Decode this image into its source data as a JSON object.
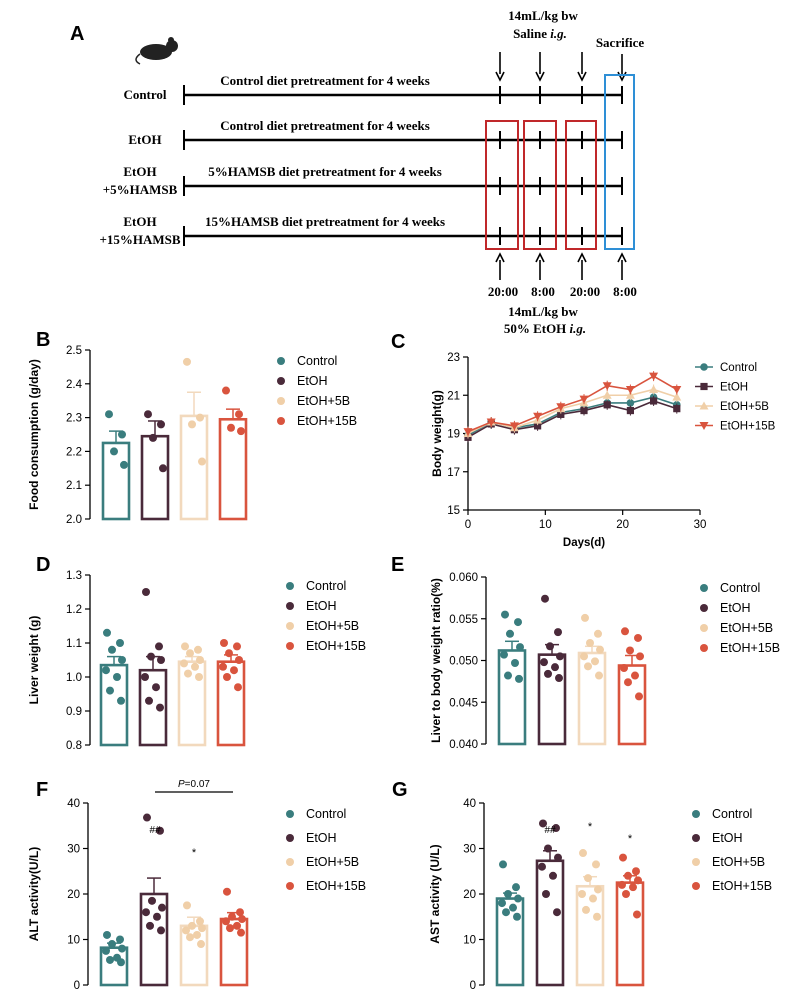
{
  "colors": {
    "control": "#3a7d7e",
    "etoh": "#4a2a3a",
    "b5": "#f2d9bd",
    "b15": "#d9543e",
    "red_box": "#c0282a",
    "blue_box": "#2e8fd6"
  },
  "icons": {
    "mouse": "mouse-icon"
  },
  "panel_a": {
    "letter": "A",
    "top_dose_l1": "14mL/kg bw",
    "top_dose_l2a": "Saline ",
    "top_dose_l2b": "i.g.",
    "sacrifice": "Sacrifice",
    "groups": [
      {
        "name_l1": "Control",
        "name_l2": "",
        "desc": "Control diet pretreatment for 4 weeks"
      },
      {
        "name_l1": "EtOH",
        "name_l2": "",
        "desc": "Control diet pretreatment for 4 weeks"
      },
      {
        "name_l1": "EtOH",
        "name_l2": "+5%HAMSB",
        "desc": "5%HAMSB diet pretreatment for 4 weeks"
      },
      {
        "name_l1": "EtOH",
        "name_l2": "+15%HAMSB",
        "desc": "15%HAMSB diet pretreatment for 4 weeks"
      }
    ],
    "times": [
      "20:00",
      "8:00",
      "20:00",
      "8:00"
    ],
    "bottom_dose_l1": "14mL/kg bw",
    "bottom_dose_l2a": "50% EtOH ",
    "bottom_dose_l2b": "i.g."
  },
  "chart_data": [
    {
      "panel": "B",
      "type": "bar",
      "ylabel": "Food consumption (g/day)",
      "ylim": [
        2.0,
        2.5
      ],
      "yticks": [
        "2.0",
        "2.1",
        "2.2",
        "2.3",
        "2.4",
        "2.5"
      ],
      "categories": [
        "Control",
        "EtOH",
        "EtOH+5B",
        "EtOH+15B"
      ],
      "values": [
        2.225,
        2.245,
        2.305,
        2.295
      ],
      "errors": [
        0.035,
        0.045,
        0.07,
        0.03
      ],
      "points": [
        [
          2.31,
          2.25,
          2.2,
          2.16
        ],
        [
          2.31,
          2.28,
          2.24,
          2.15
        ],
        [
          2.465,
          2.3,
          2.28,
          2.17
        ],
        [
          2.38,
          2.31,
          2.27,
          2.26
        ]
      ],
      "legend": [
        "Control",
        "EtOH",
        "EtOH+5B",
        "EtOH+15B"
      ],
      "legend_position": "right"
    },
    {
      "panel": "C",
      "type": "line",
      "xlabel": "Days(d)",
      "ylabel": "Body weight(g)",
      "xlim": [
        0,
        30
      ],
      "ylim": [
        15,
        23
      ],
      "xticks": [
        "0",
        "10",
        "20",
        "30"
      ],
      "yticks": [
        "15",
        "17",
        "19",
        "21",
        "23"
      ],
      "x": [
        0,
        3,
        6,
        9,
        12,
        15,
        18,
        21,
        24,
        27
      ],
      "series": [
        {
          "name": "Control",
          "values": [
            18.9,
            19.6,
            19.3,
            19.5,
            20.1,
            20.3,
            20.6,
            20.6,
            20.9,
            20.5
          ],
          "marker": "circle"
        },
        {
          "name": "EtOH",
          "values": [
            18.8,
            19.5,
            19.2,
            19.4,
            20.0,
            20.2,
            20.5,
            20.2,
            20.7,
            20.3
          ],
          "marker": "square"
        },
        {
          "name": "EtOH+5B",
          "values": [
            19.0,
            19.6,
            19.3,
            19.7,
            20.3,
            20.6,
            21.0,
            21.0,
            21.3,
            20.9
          ],
          "marker": "triangle-up"
        },
        {
          "name": "EtOH+15B",
          "values": [
            19.1,
            19.6,
            19.4,
            19.9,
            20.4,
            20.8,
            21.5,
            21.3,
            22.0,
            21.3
          ],
          "marker": "triangle-down"
        }
      ],
      "legend_position": "top-right"
    },
    {
      "panel": "D",
      "type": "bar",
      "ylabel": "Liver weight (g)",
      "ylim": [
        0.8,
        1.3
      ],
      "yticks": [
        "0.8",
        "0.9",
        "1.0",
        "1.1",
        "1.2",
        "1.3"
      ],
      "categories": [
        "Control",
        "EtOH",
        "EtOH+5B",
        "EtOH+15B"
      ],
      "values": [
        1.035,
        1.02,
        1.045,
        1.045
      ],
      "errors": [
        0.025,
        0.04,
        0.015,
        0.02
      ],
      "points": [
        [
          1.13,
          1.1,
          1.08,
          1.05,
          1.02,
          1.0,
          0.96,
          0.93
        ],
        [
          1.25,
          1.09,
          1.06,
          1.05,
          1.0,
          0.97,
          0.93,
          0.91
        ],
        [
          1.09,
          1.08,
          1.07,
          1.05,
          1.04,
          1.03,
          1.01,
          1.0
        ],
        [
          1.1,
          1.09,
          1.07,
          1.05,
          1.03,
          1.02,
          1.0,
          0.97
        ]
      ],
      "legend": [
        "Control",
        "EtOH",
        "EtOH+5B",
        "EtOH+15B"
      ],
      "legend_position": "right"
    },
    {
      "panel": "E",
      "type": "bar",
      "ylabel": "Liver to body weight ratio(%)",
      "ylim": [
        0.04,
        0.06
      ],
      "yticks": [
        "0.040",
        "0.045",
        "0.050",
        "0.055",
        "0.060"
      ],
      "categories": [
        "Control",
        "EtOH",
        "EtOH+5B",
        "EtOH+15B"
      ],
      "values": [
        0.0512,
        0.0507,
        0.0509,
        0.0494
      ],
      "errors": [
        0.0011,
        0.0012,
        0.0008,
        0.0012
      ],
      "points": [
        [
          0.0555,
          0.0546,
          0.0532,
          0.0516,
          0.0507,
          0.0497,
          0.0482,
          0.0478
        ],
        [
          0.0574,
          0.0534,
          0.0517,
          0.0505,
          0.0498,
          0.0492,
          0.0484,
          0.0479
        ],
        [
          0.0551,
          0.0532,
          0.0521,
          0.0513,
          0.0505,
          0.0499,
          0.0493,
          0.0482
        ],
        [
          0.0535,
          0.0527,
          0.0512,
          0.0505,
          0.0491,
          0.0482,
          0.0474,
          0.0457
        ]
      ],
      "legend": [
        "Control",
        "EtOH",
        "EtOH+5B",
        "EtOH+15B"
      ],
      "legend_position": "right"
    },
    {
      "panel": "F",
      "type": "bar",
      "ylabel": "ALT activity(U/L)",
      "ylim": [
        0,
        40
      ],
      "yticks": [
        "0",
        "10",
        "20",
        "30",
        "40"
      ],
      "categories": [
        "Control",
        "EtOH",
        "EtOH+5B",
        "EtOH+15B"
      ],
      "values": [
        8.2,
        20.0,
        13.0,
        14.5
      ],
      "errors": [
        1.0,
        3.5,
        1.9,
        1.4
      ],
      "points": [
        [
          11.0,
          10.0,
          9.0,
          8.0,
          7.5,
          6.0,
          5.5,
          5.0
        ],
        [
          36.8,
          33.9,
          18.5,
          17.0,
          16.0,
          15.0,
          13.0,
          12.0
        ],
        [
          17.5,
          14.0,
          13.0,
          12.5,
          12.0,
          11.0,
          10.5,
          9.0
        ],
        [
          20.5,
          16.0,
          15.0,
          14.5,
          14.0,
          13.0,
          12.5,
          11.5
        ]
      ],
      "annotations": [
        "##",
        "*"
      ],
      "comparison_prefix": "P",
      "comparison_value": "=0.07",
      "legend": [
        "Control",
        "EtOH",
        "EtOH+5B",
        "EtOH+15B"
      ],
      "legend_position": "right"
    },
    {
      "panel": "G",
      "type": "bar",
      "ylabel": "AST activity (U/L)",
      "ylim": [
        0,
        40
      ],
      "yticks": [
        "0",
        "10",
        "20",
        "30",
        "40"
      ],
      "categories": [
        "Control",
        "EtOH",
        "EtOH+5B",
        "EtOH+15B"
      ],
      "values": [
        19.0,
        27.3,
        21.7,
        22.5
      ],
      "errors": [
        1.2,
        2.2,
        2.1,
        1.5
      ],
      "points": [
        [
          26.5,
          21.5,
          20.0,
          19.0,
          18.0,
          17.0,
          16.0,
          15.0
        ],
        [
          35.5,
          34.5,
          30.0,
          28.0,
          26.0,
          24.0,
          20.0,
          16.0
        ],
        [
          29.0,
          26.5,
          23.5,
          21.0,
          20.0,
          19.0,
          16.5,
          15.0
        ],
        [
          28.0,
          25.0,
          24.0,
          23.0,
          22.0,
          21.5,
          20.0,
          15.5
        ]
      ],
      "annotations": [
        "##",
        "*",
        "*"
      ],
      "legend": [
        "Control",
        "EtOH",
        "EtOH+5B",
        "EtOH+15B"
      ],
      "legend_position": "right"
    }
  ]
}
